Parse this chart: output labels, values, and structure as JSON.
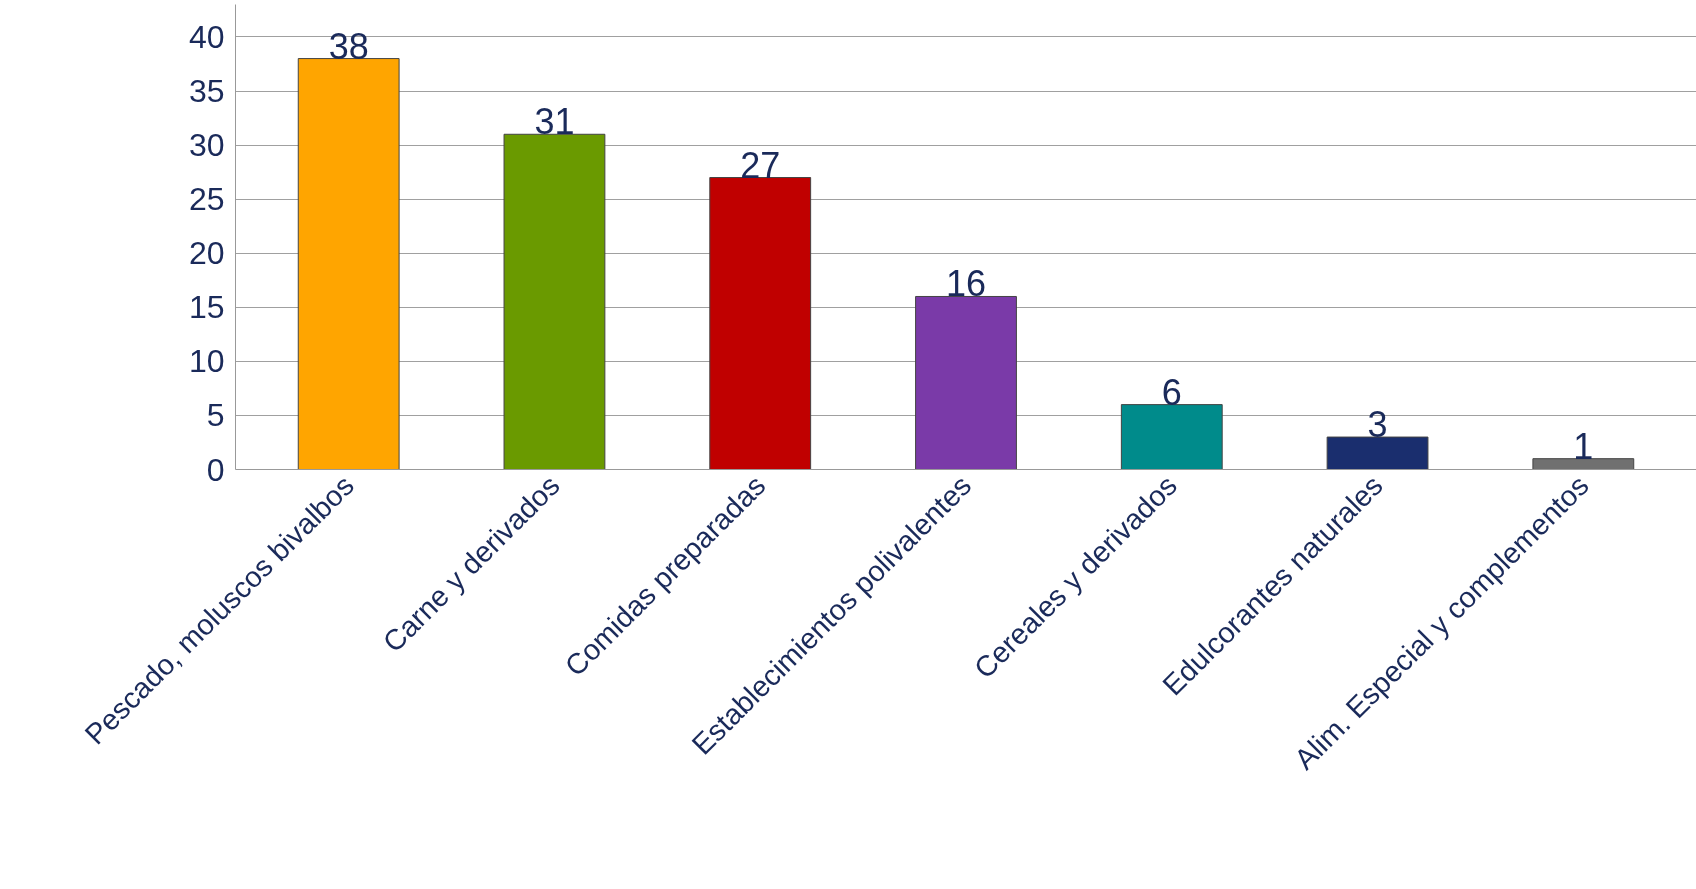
{
  "chart_data": {
    "type": "bar",
    "categories": [
      "Pescado, moluscos bivalbos",
      "Carne y derivados",
      "Comidas preparadas",
      "Establecimientos polivalentes",
      "Cereales y derivados",
      "Edulcorantes naturales",
      "Alim. Especial y complementos"
    ],
    "values": [
      38,
      31,
      27,
      16,
      6,
      3,
      1
    ],
    "colors": [
      "#ffa500",
      "#6a9a00",
      "#c00000",
      "#7a3aa8",
      "#008b8b",
      "#1a2e6e",
      "#707070"
    ],
    "ylim": [
      0,
      43
    ],
    "yticks": [
      0,
      5,
      10,
      15,
      20,
      25,
      30,
      35,
      40
    ],
    "grid": "y",
    "data_labels": true
  }
}
